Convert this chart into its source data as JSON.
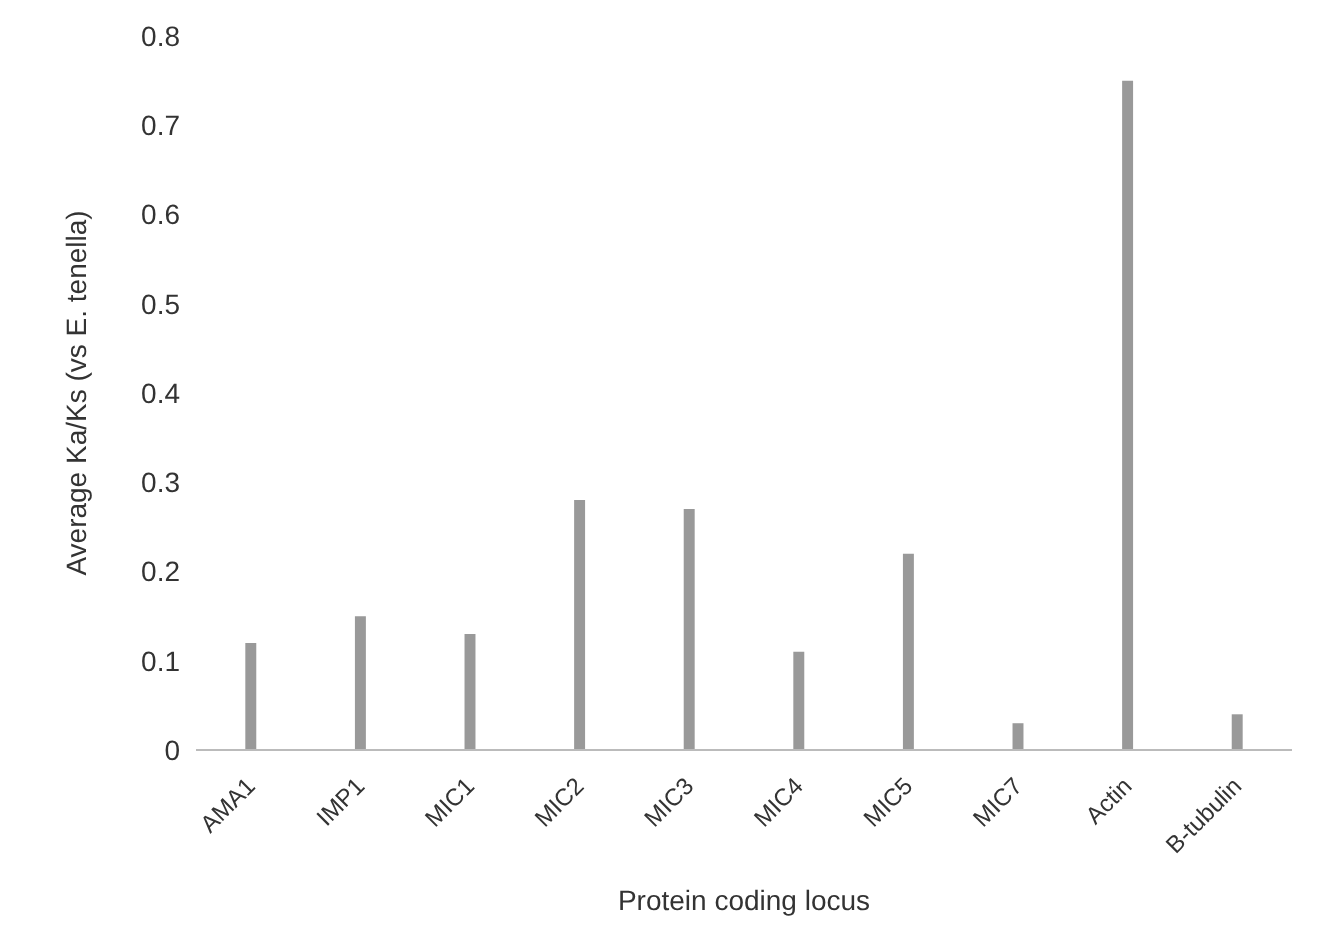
{
  "chart_data": {
    "type": "bar",
    "xlabel": "Protein coding locus",
    "ylabel": "Average Ka/Ks (vs E. tenella)",
    "categories": [
      "AMA1",
      "IMP1",
      "MIC1",
      "MIC2",
      "MIC3",
      "MIC4",
      "MIC5",
      "MIC7",
      "Actin",
      "B-tubulin"
    ],
    "values": [
      0.12,
      0.15,
      0.13,
      0.28,
      0.27,
      0.11,
      0.22,
      0.03,
      0.75,
      0.04
    ],
    "color": "#999999",
    "ylim": [
      0,
      0.8
    ],
    "yticks": [
      0,
      0.1,
      0.2,
      0.3,
      0.4,
      0.5,
      0.6,
      0.7,
      0.8
    ],
    "grid": false,
    "legend": false
  }
}
